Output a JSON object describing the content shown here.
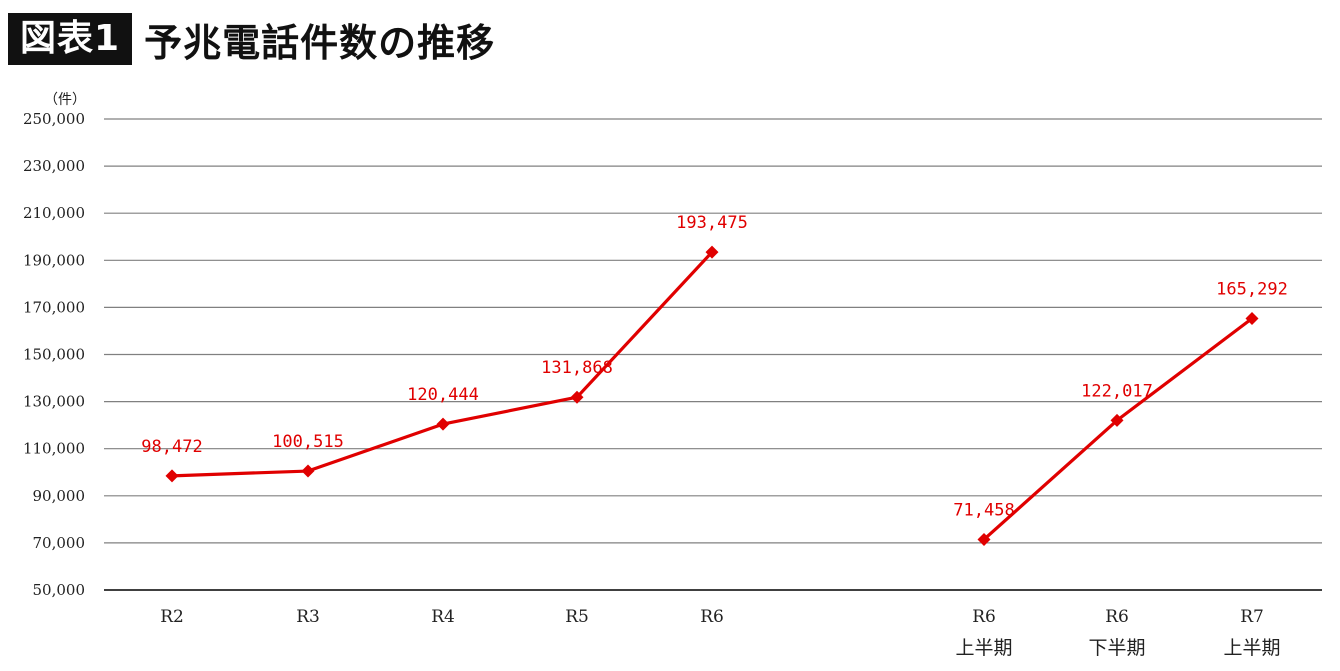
{
  "header": {
    "badge": "図表1",
    "title": "予兆電話件数の推移"
  },
  "colors": {
    "series": "#e00000",
    "grid": "#808080",
    "axis": "#000000"
  },
  "chart_data": {
    "type": "line",
    "unit_label": "（件）",
    "ylim": [
      50000,
      250000
    ],
    "y_ticks": [
      "250,000",
      "230,000",
      "210,000",
      "190,000",
      "170,000",
      "150,000",
      "130,000",
      "110,000",
      "90,000",
      "70,000",
      "50,000"
    ],
    "grid": true,
    "groups": [
      {
        "categories": [
          [
            "R2"
          ],
          [
            "R3"
          ],
          [
            "R4"
          ],
          [
            "R5"
          ],
          [
            "R6"
          ]
        ],
        "values": [
          98472,
          100515,
          120444,
          131868,
          193475
        ],
        "labels": [
          "98,472",
          "100,515",
          "120,444",
          "131,868",
          "193,475"
        ]
      },
      {
        "categories": [
          [
            "R6",
            "上半期"
          ],
          [
            "R6",
            "下半期"
          ],
          [
            "R7",
            "上半期"
          ]
        ],
        "values": [
          71458,
          122017,
          165292
        ],
        "labels": [
          "71,458",
          "122,017",
          "165,292"
        ]
      }
    ]
  }
}
